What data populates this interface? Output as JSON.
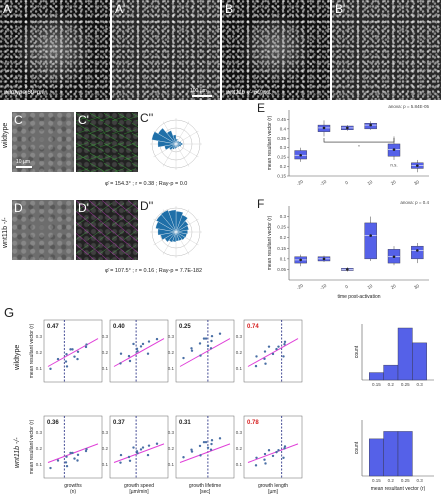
{
  "colors": {
    "box": "#5561e8",
    "fit_line": "#e040d8",
    "median_line": "#1a237e",
    "rose": "#1f6fa8",
    "hist": "#5561e8",
    "highlight": "#d62020"
  },
  "panels": {
    "A": {
      "label": "A",
      "caption": "wildtype 60' p.f.",
      "scale": "10 µm"
    },
    "A2": {
      "label": "A'",
      "scale": "100 µm"
    },
    "B": {
      "label": "B",
      "caption": "wnt11b -/- 60' p.f."
    },
    "B2": {
      "label": "B'"
    },
    "C": {
      "label": "C",
      "scale": "10 µm"
    },
    "C2": {
      "label": "C'"
    },
    "C3": {
      "label": "C''"
    },
    "D": {
      "label": "D"
    },
    "D2": {
      "label": "D'"
    },
    "D3": {
      "label": "D''"
    },
    "E": {
      "label": "E"
    },
    "F": {
      "label": "F"
    },
    "G": {
      "label": "G"
    }
  },
  "rows": {
    "wildtype": "wildtype",
    "mutant": "wnt11b -/-"
  },
  "stats": {
    "C": "φ̄ = 154.3° ; r = 0.38 ; Ray-p = 0.0",
    "D": "φ̄ = 107.5° ; r = 0.16 ; Ray-p = 7.7E-182"
  },
  "chart_data": [
    {
      "panel": "E",
      "type": "box",
      "annotation": "anova: p = 5.84E-05",
      "ylabel": "mean resultant vector (r)",
      "categories": [
        "-20",
        "-10",
        "0",
        "10",
        "20",
        "30"
      ],
      "ylim": [
        0.15,
        0.5
      ],
      "yticks": [
        "0.15",
        "0.2",
        "0.25",
        "0.3",
        "0.35",
        "0.4",
        "0.45"
      ],
      "boxes": [
        {
          "q1": 0.24,
          "median": 0.26,
          "q3": 0.285,
          "min": 0.225,
          "max": 0.3
        },
        {
          "q1": 0.385,
          "median": 0.405,
          "q3": 0.42,
          "min": 0.36,
          "max": 0.445
        },
        {
          "q1": 0.395,
          "median": 0.405,
          "q3": 0.415,
          "min": 0.39,
          "max": 0.42
        },
        {
          "q1": 0.4,
          "median": 0.42,
          "q3": 0.43,
          "min": 0.395,
          "max": 0.44
        },
        {
          "q1": 0.255,
          "median": 0.29,
          "q3": 0.32,
          "min": 0.235,
          "max": 0.36
        },
        {
          "q1": 0.19,
          "median": 0.205,
          "q3": 0.22,
          "min": 0.17,
          "max": 0.235
        }
      ],
      "bracket_text": "*",
      "ns_text": "n.s."
    },
    {
      "panel": "F",
      "type": "box",
      "annotation": "anova: p = 0.4",
      "ylabel": "mean resultant vector (r)",
      "xlabel": "time post-activation",
      "categories": [
        "-20",
        "-10",
        "0",
        "10",
        "20",
        "30"
      ],
      "ylim": [
        0.0,
        0.35
      ],
      "yticks": [
        "0.05",
        "0.1",
        "0.15",
        "0.2",
        "0.25",
        "0.3"
      ],
      "boxes": [
        {
          "q1": 0.08,
          "median": 0.095,
          "q3": 0.11,
          "min": 0.065,
          "max": 0.12
        },
        {
          "q1": 0.09,
          "median": 0.1,
          "q3": 0.11,
          "min": 0.085,
          "max": 0.115
        },
        {
          "q1": 0.045,
          "median": 0.05,
          "q3": 0.055,
          "min": 0.04,
          "max": 0.06
        },
        {
          "q1": 0.1,
          "median": 0.21,
          "q3": 0.27,
          "min": 0.09,
          "max": 0.3
        },
        {
          "q1": 0.08,
          "median": 0.11,
          "q3": 0.145,
          "min": 0.07,
          "max": 0.16
        },
        {
          "q1": 0.1,
          "median": 0.14,
          "q3": 0.16,
          "min": 0.08,
          "max": 0.175
        }
      ]
    },
    {
      "panel": "G",
      "type": "scatter",
      "ylabel": "mean resultant vector (r)",
      "xlabels": [
        "growths (n)",
        "growth speed [µm/min]",
        "growth lifetime [sec]",
        "growth length [µm]"
      ],
      "rows": [
        {
          "row": "wildtype",
          "r_values": [
            "0.47",
            "0.40",
            "0.25",
            "0.74"
          ]
        },
        {
          "row": "wnt11b -/-",
          "r_values": [
            "0.36",
            "0.37",
            "0.31",
            "0.78"
          ]
        }
      ]
    },
    {
      "panel": "G-hist",
      "type": "bar",
      "ylabel": "count",
      "xlabel": "mean resultant vector (r)",
      "wildtype_bins": [
        0.15,
        0.2,
        0.25,
        0.3
      ],
      "wildtype_counts": [
        1,
        2,
        7,
        5
      ],
      "mutant_counts": [
        5,
        6,
        6,
        0
      ]
    }
  ]
}
